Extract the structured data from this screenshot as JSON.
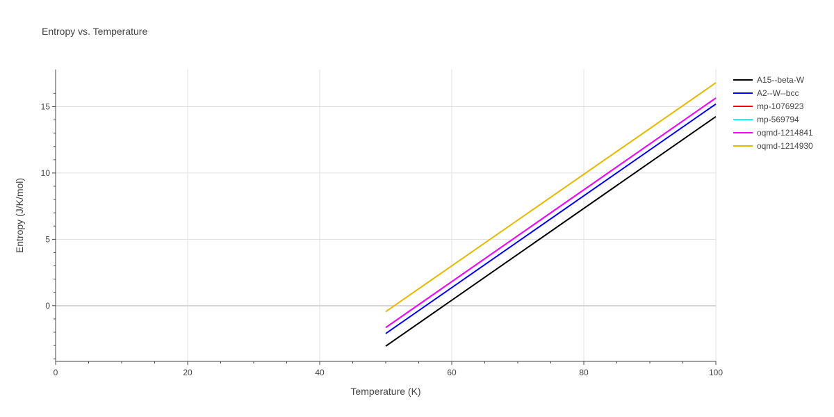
{
  "chart_data": {
    "type": "line",
    "title": "Entropy vs. Temperature",
    "xlabel": "Temperature (K)",
    "ylabel": "Entropy (J/K/mol)",
    "xlim": [
      0,
      100
    ],
    "ylim": [
      -4.2,
      17.8
    ],
    "xticks": [
      0,
      20,
      40,
      60,
      80,
      100
    ],
    "yticks": [
      0,
      5,
      10,
      15
    ],
    "grid": true,
    "legend_position": "top-right",
    "series": [
      {
        "name": "A15--beta-W",
        "color": "#000000",
        "x": [
          50,
          100
        ],
        "y": [
          -3.05,
          14.25
        ]
      },
      {
        "name": "A2--W--bcc",
        "color": "#0000ff",
        "x": [
          50,
          100
        ],
        "y": [
          -2.1,
          15.2
        ]
      },
      {
        "name": "mp-1076923",
        "color": "#ff0000",
        "x": [
          50,
          100
        ],
        "y": [
          -1.65,
          15.65
        ]
      },
      {
        "name": "mp-569794",
        "color": "#00ffff",
        "x": [
          50,
          100
        ],
        "y": [
          -1.65,
          15.65
        ]
      },
      {
        "name": "oqmd-1214841",
        "color": "#ff00ff",
        "x": [
          50,
          100
        ],
        "y": [
          -1.65,
          15.65
        ]
      },
      {
        "name": "oqmd-1214930",
        "color": "#e6b800",
        "x": [
          50,
          100
        ],
        "y": [
          -0.45,
          16.8
        ]
      }
    ]
  }
}
